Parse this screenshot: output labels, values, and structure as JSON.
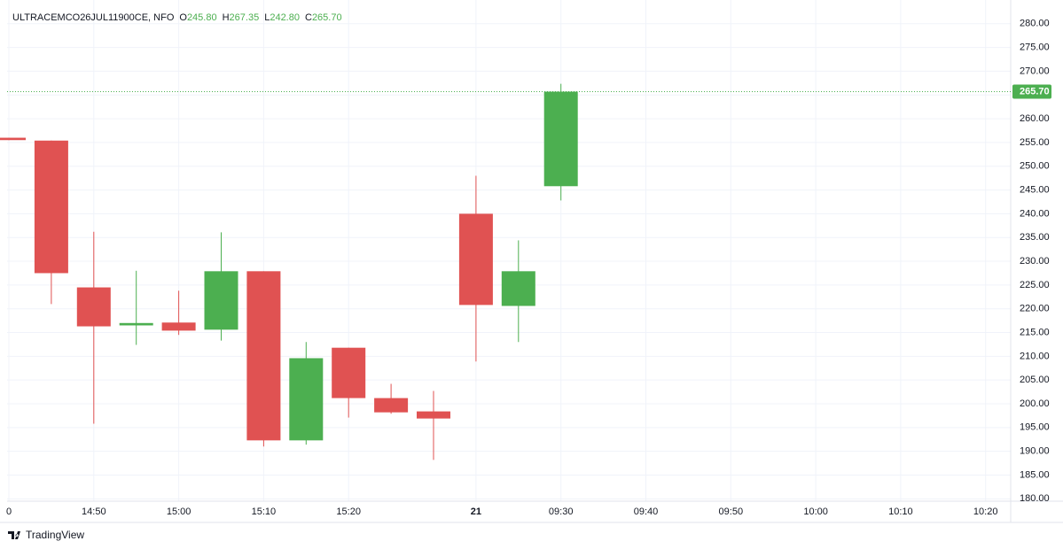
{
  "chart_data": {
    "type": "candlestick",
    "title": "ULTRACEMCO26JUL11900CE, NFO",
    "ohlc_legend": [
      {
        "key": "O",
        "value": "245.80"
      },
      {
        "key": "H",
        "value": "267.35"
      },
      {
        "key": "L",
        "value": "242.80"
      },
      {
        "key": "C",
        "value": "265.70"
      }
    ],
    "categories": [
      "0",
      null,
      "14:50",
      null,
      "15:00",
      null,
      "15:10",
      null,
      "15:20",
      null,
      null,
      "21",
      null,
      "09:30",
      null,
      "09:40",
      null,
      "09:50",
      null,
      "10:00",
      null,
      "10:10",
      null,
      "10:20"
    ],
    "open": [
      256.0,
      255.4,
      224.5,
      216.5,
      217.1,
      215.6,
      227.9,
      192.3,
      211.8,
      201.2,
      198.4,
      240.0,
      220.6,
      245.8,
      null,
      null,
      null,
      null,
      null,
      null,
      null,
      null,
      null,
      null
    ],
    "high": [
      256.0,
      255.4,
      236.2,
      228.0,
      223.8,
      236.1,
      227.9,
      213.0,
      211.8,
      204.2,
      202.7,
      248.0,
      234.4,
      267.35,
      null,
      null,
      null,
      null,
      null,
      null,
      null,
      null,
      null,
      null
    ],
    "low": [
      255.5,
      221.0,
      195.8,
      212.4,
      214.5,
      213.3,
      191.0,
      191.4,
      197.1,
      197.9,
      188.2,
      208.9,
      213.0,
      242.8,
      null,
      null,
      null,
      null,
      null,
      null,
      null,
      null,
      null,
      null
    ],
    "close": [
      255.5,
      227.5,
      216.3,
      217.0,
      215.4,
      227.9,
      192.3,
      209.6,
      201.2,
      198.2,
      196.9,
      220.8,
      227.9,
      265.7,
      null,
      null,
      null,
      null,
      null,
      null,
      null,
      null,
      null,
      null
    ],
    "up_color": "#4caf50",
    "down_color": "#e05252",
    "last_price": {
      "value": 265.7,
      "label": "265.70"
    },
    "ylim": [
      179.5,
      283.5
    ],
    "yticks": [
      {
        "value": 180,
        "label": "180.00"
      },
      {
        "value": 185,
        "label": "185.00"
      },
      {
        "value": 190,
        "label": "190.00"
      },
      {
        "value": 195,
        "label": "195.00"
      },
      {
        "value": 200,
        "label": "200.00"
      },
      {
        "value": 205,
        "label": "205.00"
      },
      {
        "value": 210,
        "label": "210.00"
      },
      {
        "value": 215,
        "label": "215.00"
      },
      {
        "value": 220,
        "label": "220.00"
      },
      {
        "value": 225,
        "label": "225.00"
      },
      {
        "value": 230,
        "label": "230.00"
      },
      {
        "value": 235,
        "label": "235.00"
      },
      {
        "value": 240,
        "label": "240.00"
      },
      {
        "value": 245,
        "label": "245.00"
      },
      {
        "value": 250,
        "label": "250.00"
      },
      {
        "value": 255,
        "label": "255.00"
      },
      {
        "value": 260,
        "label": "260.00"
      },
      {
        "value": 265,
        "label": "265.00"
      },
      {
        "value": 270,
        "label": "270.00"
      },
      {
        "value": 275,
        "label": "275.00"
      },
      {
        "value": 280,
        "label": "280.00"
      }
    ],
    "grid": true
  },
  "footer": {
    "brand": "TradingView"
  }
}
